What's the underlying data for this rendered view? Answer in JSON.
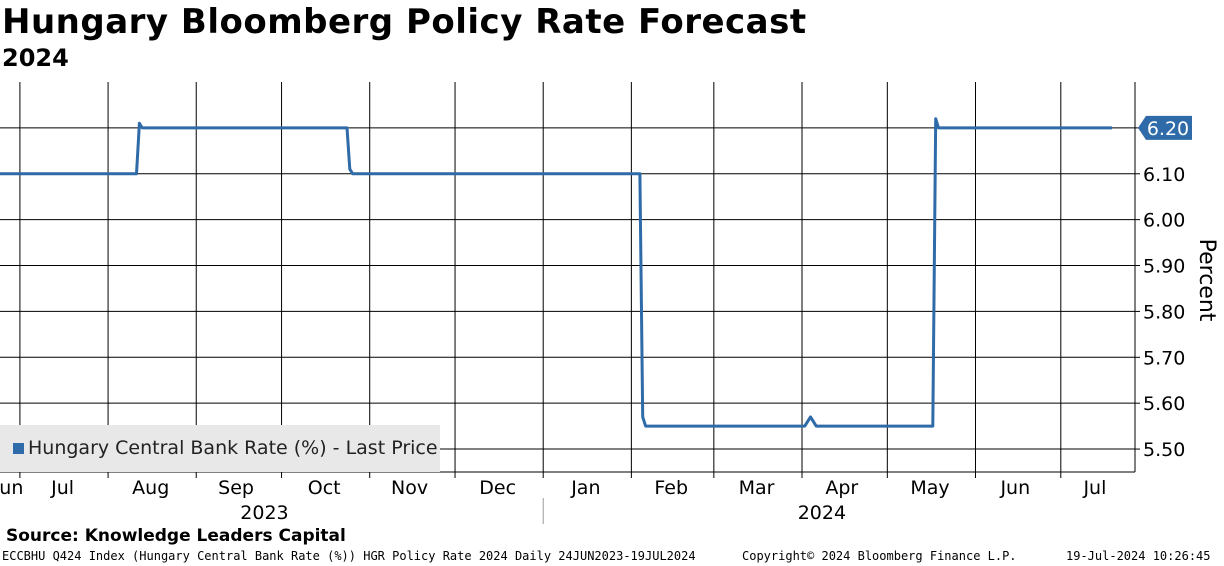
{
  "chart_data": {
    "type": "line",
    "title": "Hungary Bloomberg Policy Rate Forecast",
    "subtitle": "2024",
    "ylabel": "Percent",
    "ylim": [
      5.45,
      6.3
    ],
    "yticks": [
      "6.20",
      "6.10",
      "6.00",
      "5.90",
      "5.80",
      "5.70",
      "5.60",
      "5.50"
    ],
    "ytick_values": [
      6.2,
      6.1,
      6.0,
      5.9,
      5.8,
      5.7,
      5.6,
      5.5
    ],
    "x_start": "2023-06-24",
    "x_end": "2024-07-19",
    "x_month_labels": [
      "Jun",
      "Jul",
      "Aug",
      "Sep",
      "Oct",
      "Nov",
      "Dec",
      "Jan",
      "Feb",
      "Mar",
      "Apr",
      "May",
      "Jun",
      "Jul"
    ],
    "x_year_labels": [
      "2023",
      "2024"
    ],
    "series": [
      {
        "name": "Hungary Central Bank Rate (%) - Last Price",
        "color": "#2e6ba8",
        "points": [
          [
            "2023-06-24",
            6.1
          ],
          [
            "2023-08-11",
            6.1
          ],
          [
            "2023-08-12",
            6.21
          ],
          [
            "2023-08-13",
            6.2
          ],
          [
            "2023-10-24",
            6.2
          ],
          [
            "2023-10-25",
            6.11
          ],
          [
            "2023-10-26",
            6.1
          ],
          [
            "2024-02-04",
            6.1
          ],
          [
            "2024-02-05",
            5.57
          ],
          [
            "2024-02-06",
            5.55
          ],
          [
            "2024-04-02",
            5.55
          ],
          [
            "2024-04-04",
            5.57
          ],
          [
            "2024-04-06",
            5.55
          ],
          [
            "2024-05-17",
            5.55
          ],
          [
            "2024-05-18",
            6.22
          ],
          [
            "2024-05-19",
            6.2
          ],
          [
            "2024-07-19",
            6.2
          ]
        ]
      }
    ],
    "last_value_label": "6.20"
  },
  "legend": {
    "label": "Hungary Central Bank Rate (%) - Last Price"
  },
  "source": "Source: Knowledge Leaders Capital",
  "footer": {
    "left": "ECCBHU Q424 Index (Hungary Central Bank Rate (%)) HGR Policy Rate 2024  Daily 24JUN2023-19JUL2024",
    "center": "Copyright© 2024 Bloomberg Finance L.P.",
    "right": "19-Jul-2024 10:26:45"
  },
  "colors": {
    "line": "#2e6ba8",
    "grid": "#000000",
    "badge": "#2e6ba8"
  }
}
